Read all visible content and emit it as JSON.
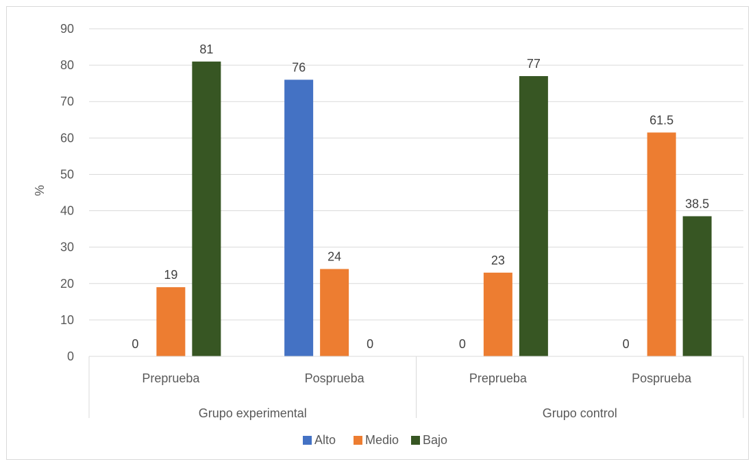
{
  "chart_data": {
    "type": "bar",
    "title": "",
    "ylabel": "%",
    "xlabel": "",
    "ylim": [
      0,
      90
    ],
    "ytick_step": 10,
    "groups": [
      {
        "label": "Grupo experimental",
        "categories": [
          "Preprueba",
          "Posprueba"
        ]
      },
      {
        "label": "Grupo control",
        "categories": [
          "Preprueba",
          "Posprueba"
        ]
      }
    ],
    "categories": [
      "Preprueba",
      "Posprueba",
      "Preprueba",
      "Posprueba"
    ],
    "series": [
      {
        "name": "Alto",
        "color": "#4472c4",
        "values": [
          0,
          76,
          0,
          0
        ]
      },
      {
        "name": "Medio",
        "color": "#ed7d31",
        "values": [
          19,
          24,
          23,
          61.5
        ]
      },
      {
        "name": "Bajo",
        "color": "#375623",
        "values": [
          81,
          0,
          77,
          38.5
        ]
      }
    ],
    "grid": true,
    "legend_position": "bottom"
  }
}
